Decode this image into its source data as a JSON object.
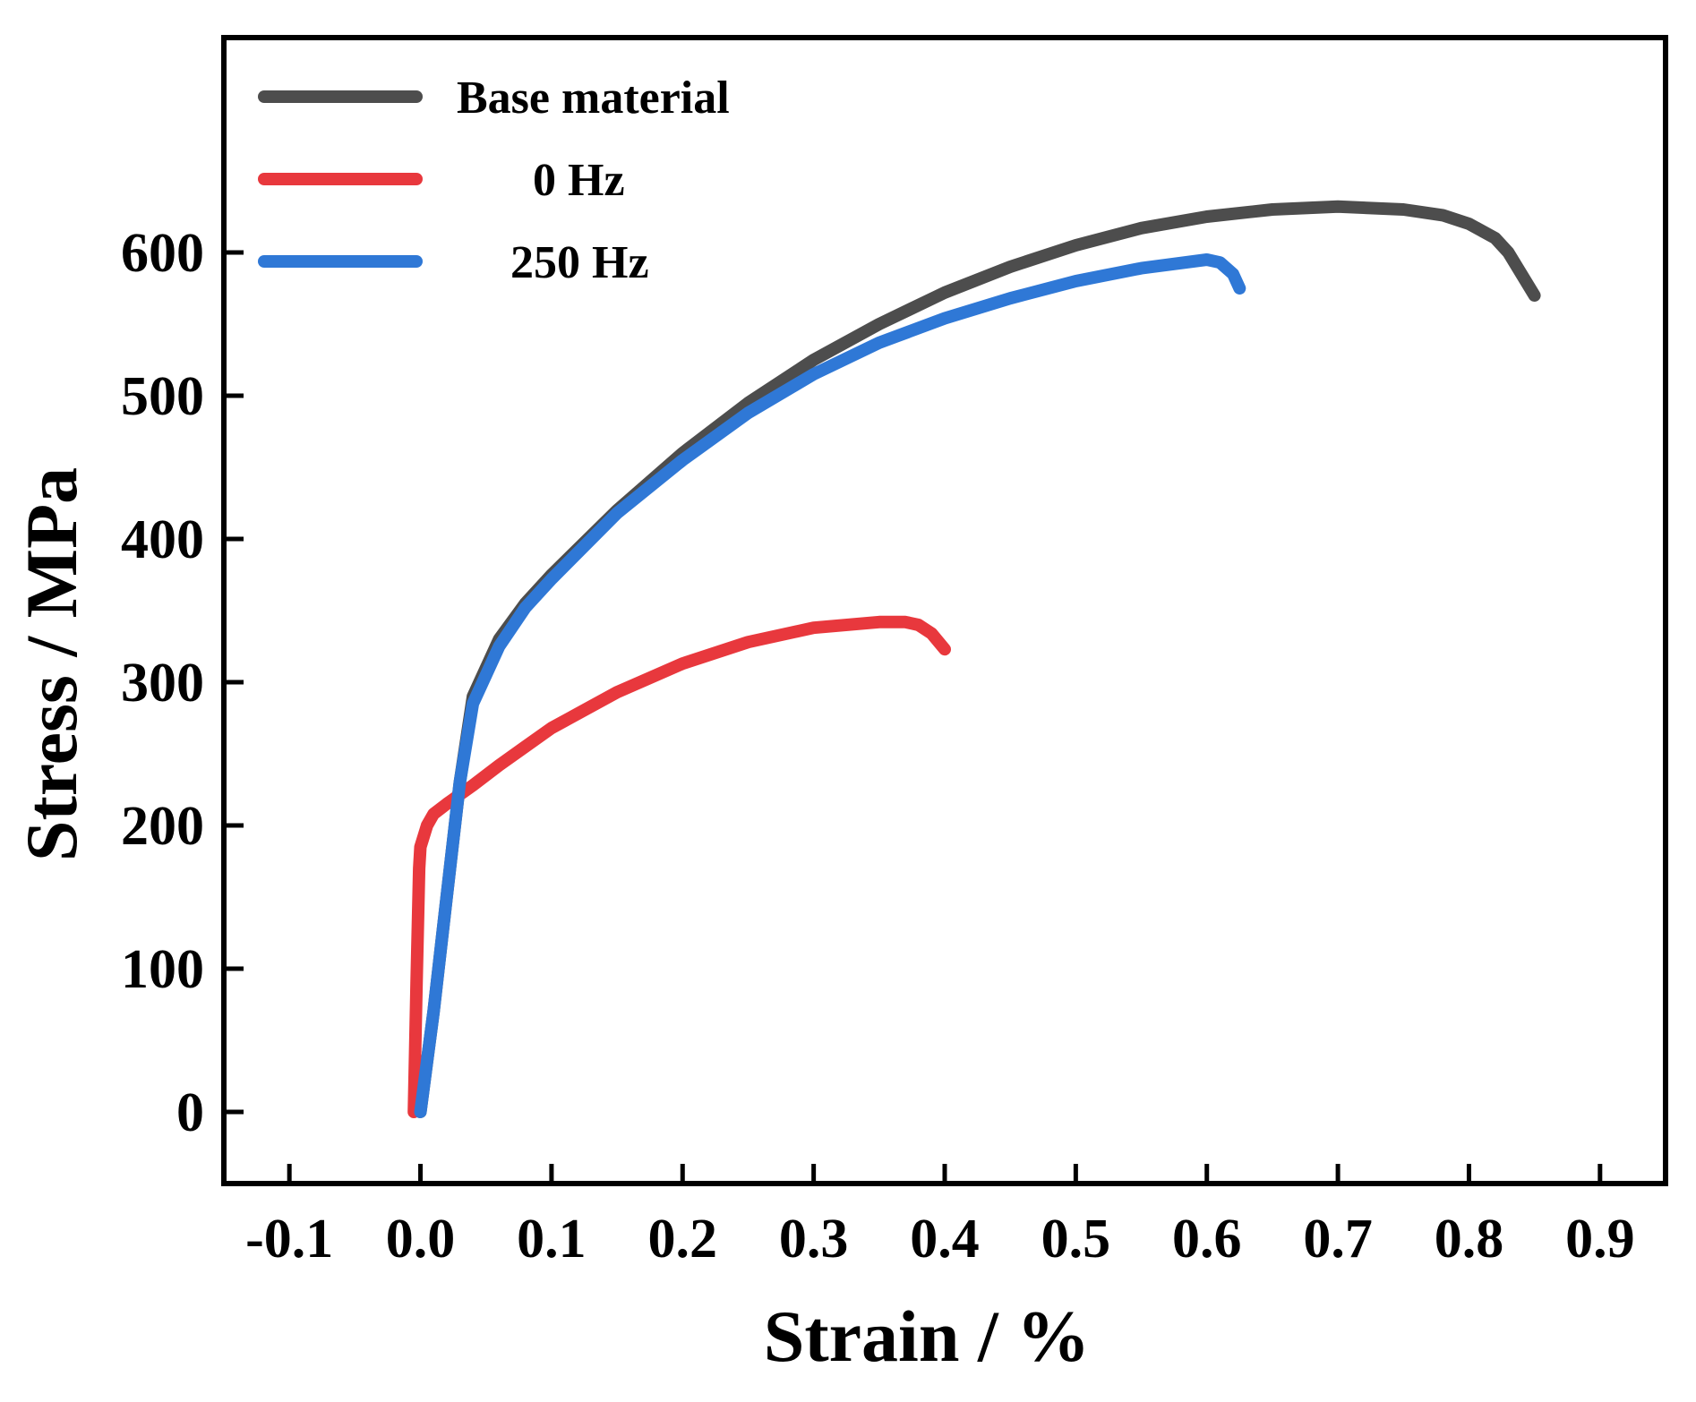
{
  "chart_data": {
    "type": "line",
    "title": "",
    "xlabel": "Strain  / %",
    "ylabel": "Stress / MPa",
    "xlim": [
      -0.15,
      0.95
    ],
    "ylim": [
      -50,
      750
    ],
    "xticks": [
      -0.1,
      0.0,
      0.1,
      0.2,
      0.3,
      0.4,
      0.5,
      0.6,
      0.7,
      0.8,
      0.9
    ],
    "xtick_labels": [
      "-0.1",
      "0.0",
      "0.1",
      "0.2",
      "0.3",
      "0.4",
      "0.5",
      "0.6",
      "0.7",
      "0.8",
      "0.9"
    ],
    "yticks": [
      0,
      100,
      200,
      300,
      400,
      500,
      600
    ],
    "ytick_labels": [
      "0",
      "100",
      "200",
      "300",
      "400",
      "500",
      "600"
    ],
    "grid": false,
    "legend_position": "top-left",
    "series": [
      {
        "name": "Base material",
        "legend_label": "Base material",
        "color": "#4d4d4d",
        "x": [
          0.0,
          0.01,
          0.02,
          0.03,
          0.04,
          0.06,
          0.08,
          0.1,
          0.15,
          0.2,
          0.25,
          0.3,
          0.35,
          0.4,
          0.45,
          0.5,
          0.55,
          0.6,
          0.65,
          0.7,
          0.75,
          0.78,
          0.8,
          0.82,
          0.83,
          0.84,
          0.85
        ],
        "y": [
          0,
          70,
          150,
          230,
          290,
          330,
          355,
          375,
          420,
          460,
          495,
          525,
          550,
          572,
          590,
          605,
          617,
          625,
          630,
          632,
          630,
          626,
          620,
          610,
          600,
          585,
          570
        ]
      },
      {
        "name": "0 Hz",
        "legend_label": "0  Hz",
        "color": "#e8383d",
        "x": [
          -0.005,
          -0.003,
          -0.001,
          0.0,
          0.005,
          0.01,
          0.02,
          0.04,
          0.06,
          0.08,
          0.1,
          0.15,
          0.2,
          0.25,
          0.3,
          0.35,
          0.37,
          0.38,
          0.39,
          0.4
        ],
        "y": [
          0,
          90,
          170,
          185,
          200,
          208,
          215,
          228,
          242,
          255,
          268,
          293,
          313,
          328,
          338,
          342,
          342,
          340,
          334,
          323
        ]
      },
      {
        "name": "250 Hz",
        "legend_label": "250 Hz",
        "color": "#2f78d6",
        "x": [
          0.0,
          0.01,
          0.02,
          0.03,
          0.04,
          0.06,
          0.08,
          0.1,
          0.15,
          0.2,
          0.25,
          0.3,
          0.35,
          0.4,
          0.45,
          0.5,
          0.55,
          0.6,
          0.61,
          0.62,
          0.625
        ],
        "y": [
          0,
          70,
          150,
          230,
          285,
          325,
          352,
          372,
          418,
          455,
          488,
          515,
          537,
          554,
          568,
          580,
          589,
          595,
          593,
          585,
          575
        ]
      }
    ]
  }
}
